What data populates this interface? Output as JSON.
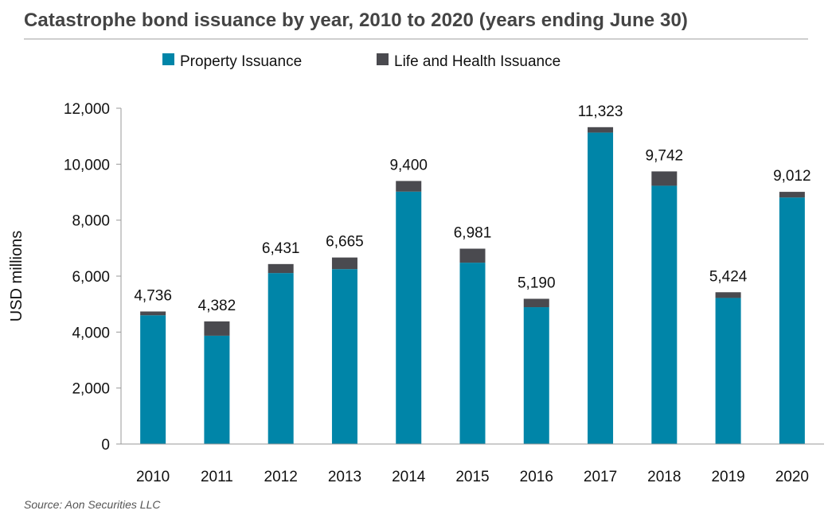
{
  "title": "Catastrophe bond issuance by year, 2010 to 2020 (years ending June 30)",
  "source": "Source: Aon Securities LLC",
  "colors": {
    "property": "#0085a8",
    "life_health": "#4a4a4f",
    "axis": "#999999"
  },
  "chart_data": {
    "type": "bar",
    "stacked": true,
    "categories": [
      "2010",
      "2011",
      "2012",
      "2013",
      "2014",
      "2015",
      "2016",
      "2017",
      "2018",
      "2019",
      "2020"
    ],
    "series": [
      {
        "name": "Property Issuance",
        "values": [
          4600,
          3870,
          6110,
          6250,
          9020,
          6480,
          4890,
          11130,
          9230,
          5220,
          8810
        ]
      },
      {
        "name": "Life and Health Issuance",
        "values": [
          136,
          512,
          321,
          415,
          380,
          501,
          300,
          193,
          512,
          204,
          202
        ]
      }
    ],
    "totals": [
      4736,
      4382,
      6431,
      6665,
      9400,
      6981,
      5190,
      11323,
      9742,
      5424,
      9012
    ],
    "total_labels": [
      "4,736",
      "4,382",
      "6,431",
      "6,665",
      "9,400",
      "6,981",
      "5,190",
      "11,323",
      "9,742",
      "5,424",
      "9,012"
    ],
    "ylabel": "USD millions",
    "ylim": [
      0,
      12000
    ],
    "yticks": [
      0,
      2000,
      4000,
      6000,
      8000,
      10000,
      12000
    ],
    "ytick_labels": [
      "0",
      "2,000",
      "4,000",
      "6,000",
      "8,000",
      "10,000",
      "12,000"
    ],
    "grid": false,
    "legend_position": "top"
  }
}
